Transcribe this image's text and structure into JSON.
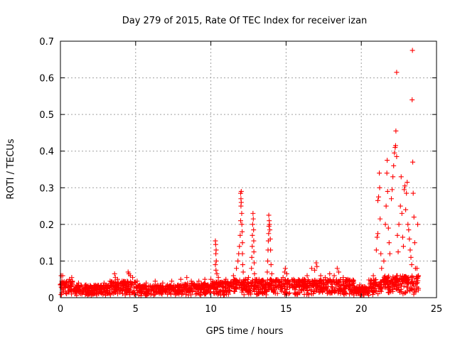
{
  "chart_data": {
    "type": "scatter",
    "title": "Day 279 of 2015, Rate Of TEC Index for receiver izan",
    "xlabel": "GPS time / hours",
    "ylabel": "ROTI / TECUs",
    "xlim": [
      0,
      25
    ],
    "ylim": [
      0,
      0.7
    ],
    "xticks": [
      "0",
      "5",
      "10",
      "15",
      "20",
      "25"
    ],
    "yticks": [
      "0",
      "0.1",
      "0.2",
      "0.3",
      "0.4",
      "0.5",
      "0.6",
      "0.7"
    ],
    "grid": true,
    "marker": "+",
    "color": "#ff0000",
    "baseline_ranges": [
      [
        0.0,
        0.8,
        0.045
      ],
      [
        0.8,
        3.3,
        0.035
      ],
      [
        3.3,
        5.0,
        0.045
      ],
      [
        5.0,
        8.0,
        0.035
      ],
      [
        8.0,
        10.0,
        0.04
      ],
      [
        10.0,
        11.5,
        0.045
      ],
      [
        11.5,
        14.5,
        0.05
      ],
      [
        14.5,
        19.5,
        0.05
      ],
      [
        19.5,
        20.5,
        0.03
      ],
      [
        20.5,
        21.5,
        0.05
      ],
      [
        21.5,
        23.8,
        0.06
      ]
    ],
    "series": [
      {
        "values": [
          [
            0.0,
            0.035
          ],
          [
            0.05,
            0.06
          ],
          [
            0.15,
            0.06
          ],
          [
            0.1,
            0.045
          ],
          [
            0.2,
            0.04
          ],
          [
            0.5,
            0.03
          ],
          [
            0.6,
            0.05
          ],
          [
            0.75,
            0.055
          ],
          [
            0.8,
            0.045
          ],
          [
            1.2,
            0.04
          ],
          [
            1.7,
            0.035
          ],
          [
            2.3,
            0.03
          ],
          [
            2.9,
            0.04
          ],
          [
            3.3,
            0.045
          ],
          [
            3.6,
            0.065
          ],
          [
            3.65,
            0.055
          ],
          [
            3.8,
            0.05
          ],
          [
            4.1,
            0.045
          ],
          [
            4.5,
            0.07
          ],
          [
            4.55,
            0.065
          ],
          [
            4.65,
            0.06
          ],
          [
            4.8,
            0.055
          ],
          [
            5.1,
            0.045
          ],
          [
            5.7,
            0.04
          ],
          [
            6.3,
            0.045
          ],
          [
            6.8,
            0.04
          ],
          [
            7.4,
            0.045
          ],
          [
            8.0,
            0.05
          ],
          [
            8.4,
            0.055
          ],
          [
            8.7,
            0.045
          ],
          [
            9.2,
            0.045
          ],
          [
            9.6,
            0.05
          ],
          [
            10.0,
            0.05
          ],
          [
            10.3,
            0.155
          ],
          [
            10.32,
            0.145
          ],
          [
            10.35,
            0.13
          ],
          [
            10.33,
            0.12
          ],
          [
            10.36,
            0.1
          ],
          [
            10.3,
            0.09
          ],
          [
            10.34,
            0.075
          ],
          [
            10.4,
            0.065
          ],
          [
            10.5,
            0.055
          ],
          [
            11.0,
            0.05
          ],
          [
            11.5,
            0.06
          ],
          [
            11.7,
            0.08
          ],
          [
            11.8,
            0.1
          ],
          [
            11.85,
            0.12
          ],
          [
            11.9,
            0.14
          ],
          [
            11.95,
            0.17
          ],
          [
            11.98,
            0.21
          ],
          [
            12.0,
            0.25
          ],
          [
            12.0,
            0.27
          ],
          [
            11.98,
            0.285
          ],
          [
            12.02,
            0.29
          ],
          [
            12.02,
            0.26
          ],
          [
            12.05,
            0.23
          ],
          [
            12.06,
            0.2
          ],
          [
            12.08,
            0.18
          ],
          [
            12.1,
            0.15
          ],
          [
            12.1,
            0.12
          ],
          [
            12.12,
            0.09
          ],
          [
            12.15,
            0.07
          ],
          [
            12.3,
            0.05
          ],
          [
            12.5,
            0.055
          ],
          [
            12.7,
            0.08
          ],
          [
            12.72,
            0.11
          ],
          [
            12.75,
            0.14
          ],
          [
            12.76,
            0.17
          ],
          [
            12.78,
            0.2
          ],
          [
            12.8,
            0.23
          ],
          [
            12.82,
            0.215
          ],
          [
            12.84,
            0.185
          ],
          [
            12.85,
            0.155
          ],
          [
            12.86,
            0.125
          ],
          [
            12.88,
            0.095
          ],
          [
            12.9,
            0.065
          ],
          [
            13.2,
            0.05
          ],
          [
            13.5,
            0.045
          ],
          [
            13.75,
            0.07
          ],
          [
            13.78,
            0.1
          ],
          [
            13.8,
            0.13
          ],
          [
            13.82,
            0.155
          ],
          [
            13.84,
            0.175
          ],
          [
            13.86,
            0.195
          ],
          [
            13.88,
            0.21
          ],
          [
            13.85,
            0.225
          ],
          [
            13.9,
            0.2
          ],
          [
            13.92,
            0.185
          ],
          [
            13.95,
            0.16
          ],
          [
            13.97,
            0.13
          ],
          [
            14.0,
            0.09
          ],
          [
            14.05,
            0.065
          ],
          [
            14.3,
            0.045
          ],
          [
            14.8,
            0.055
          ],
          [
            14.9,
            0.07
          ],
          [
            14.95,
            0.08
          ],
          [
            15.05,
            0.065
          ],
          [
            15.5,
            0.05
          ],
          [
            15.8,
            0.045
          ],
          [
            16.1,
            0.05
          ],
          [
            16.4,
            0.06
          ],
          [
            16.7,
            0.08
          ],
          [
            16.9,
            0.075
          ],
          [
            17.0,
            0.095
          ],
          [
            17.05,
            0.085
          ],
          [
            17.3,
            0.06
          ],
          [
            17.6,
            0.055
          ],
          [
            17.9,
            0.065
          ],
          [
            18.2,
            0.06
          ],
          [
            18.4,
            0.08
          ],
          [
            18.5,
            0.07
          ],
          [
            18.8,
            0.055
          ],
          [
            19.1,
            0.05
          ],
          [
            19.5,
            0.04
          ],
          [
            19.9,
            0.035
          ],
          [
            20.2,
            0.03
          ],
          [
            20.6,
            0.04
          ],
          [
            20.8,
            0.06
          ],
          [
            21.0,
            0.13
          ],
          [
            21.05,
            0.165
          ],
          [
            21.1,
            0.175
          ],
          [
            21.1,
            0.265
          ],
          [
            21.15,
            0.275
          ],
          [
            21.2,
            0.34
          ],
          [
            21.22,
            0.3
          ],
          [
            21.25,
            0.215
          ],
          [
            21.3,
            0.12
          ],
          [
            21.35,
            0.08
          ],
          [
            21.5,
            0.1
          ],
          [
            21.6,
            0.2
          ],
          [
            21.65,
            0.25
          ],
          [
            21.7,
            0.34
          ],
          [
            21.72,
            0.375
          ],
          [
            21.75,
            0.29
          ],
          [
            21.8,
            0.19
          ],
          [
            21.85,
            0.15
          ],
          [
            21.9,
            0.12
          ],
          [
            22.0,
            0.27
          ],
          [
            22.05,
            0.295
          ],
          [
            22.1,
            0.33
          ],
          [
            22.15,
            0.36
          ],
          [
            22.2,
            0.395
          ],
          [
            22.25,
            0.41
          ],
          [
            22.28,
            0.415
          ],
          [
            22.3,
            0.455
          ],
          [
            22.35,
            0.385
          ],
          [
            22.35,
            0.615
          ],
          [
            22.4,
            0.17
          ],
          [
            22.45,
            0.125
          ],
          [
            22.5,
            0.2
          ],
          [
            22.6,
            0.25
          ],
          [
            22.65,
            0.33
          ],
          [
            22.7,
            0.23
          ],
          [
            22.75,
            0.165
          ],
          [
            22.8,
            0.14
          ],
          [
            22.85,
            0.295
          ],
          [
            22.9,
            0.305
          ],
          [
            22.95,
            0.24
          ],
          [
            23.0,
            0.285
          ],
          [
            23.05,
            0.315
          ],
          [
            23.1,
            0.2
          ],
          [
            23.15,
            0.185
          ],
          [
            23.2,
            0.16
          ],
          [
            23.25,
            0.13
          ],
          [
            23.3,
            0.11
          ],
          [
            23.35,
            0.09
          ],
          [
            23.38,
            0.54
          ],
          [
            23.4,
            0.675
          ],
          [
            23.42,
            0.37
          ],
          [
            23.45,
            0.285
          ],
          [
            23.5,
            0.22
          ],
          [
            23.55,
            0.15
          ],
          [
            23.6,
            0.08
          ],
          [
            23.7,
            0.08
          ],
          [
            23.75,
            0.2
          ],
          [
            23.8,
            0.06
          ],
          [
            23.8,
            0.025
          ]
        ]
      }
    ]
  }
}
